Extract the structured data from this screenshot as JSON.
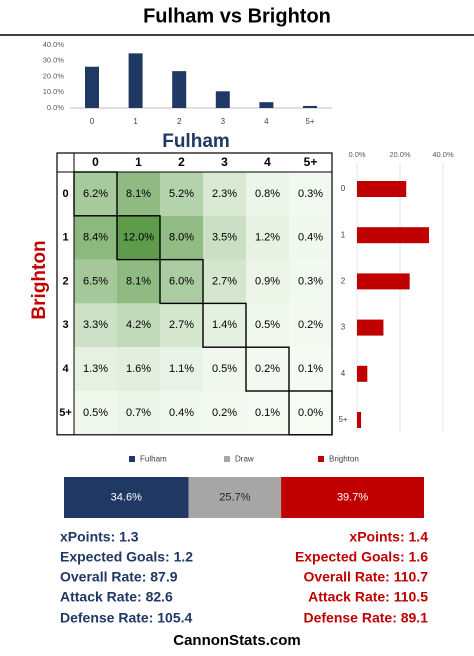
{
  "title": "Fulham vs Brighton",
  "chart_data": [
    {
      "type": "bar",
      "categories": [
        "0",
        "1",
        "2",
        "3",
        "4",
        "5+"
      ],
      "values": [
        26.2,
        34.7,
        23.4,
        10.6,
        3.7,
        1.3
      ],
      "color": "#1f3864",
      "ylim": [
        0,
        40
      ],
      "yticks": [
        {
          "value": 0,
          "label": "0.0%"
        },
        {
          "value": 10,
          "label": "10.0%"
        },
        {
          "value": 20,
          "label": "20.0%"
        },
        {
          "value": 30,
          "label": "30.0%"
        },
        {
          "value": 40,
          "label": "40.0%"
        }
      ],
      "grid": false
    },
    {
      "type": "heatmap",
      "x_label": "Fulham",
      "y_label": "Brighton",
      "x_categories": [
        "0",
        "1",
        "2",
        "3",
        "4",
        "5+"
      ],
      "y_categories": [
        "0",
        "1",
        "2",
        "3",
        "4",
        "5+"
      ],
      "values": [
        [
          6.2,
          8.1,
          5.2,
          2.3,
          0.8,
          0.3
        ],
        [
          8.4,
          12.0,
          8.0,
          3.5,
          1.2,
          0.4
        ],
        [
          6.5,
          8.1,
          6.0,
          2.7,
          0.9,
          0.3
        ],
        [
          3.3,
          4.2,
          2.7,
          1.4,
          0.5,
          0.2
        ],
        [
          1.3,
          1.6,
          1.1,
          0.5,
          0.2,
          0.1
        ],
        [
          0.5,
          0.7,
          0.4,
          0.2,
          0.1,
          0.0
        ]
      ],
      "value_labels": [
        [
          "6.2%",
          "8.1%",
          "5.2%",
          "2.3%",
          "0.8%",
          "0.3%"
        ],
        [
          "8.4%",
          "12.0%",
          "8.0%",
          "3.5%",
          "1.2%",
          "0.4%"
        ],
        [
          "6.5%",
          "8.1%",
          "6.0%",
          "2.7%",
          "0.9%",
          "0.3%"
        ],
        [
          "3.3%",
          "4.2%",
          "2.7%",
          "1.4%",
          "0.5%",
          "0.2%"
        ],
        [
          "1.3%",
          "1.6%",
          "1.1%",
          "0.5%",
          "0.2%",
          "0.1%"
        ],
        [
          "0.5%",
          "0.7%",
          "0.4%",
          "0.2%",
          "0.1%",
          "0.0%"
        ]
      ],
      "color": "#5e9c4c"
    },
    {
      "type": "barh",
      "categories": [
        "0",
        "1",
        "2",
        "3",
        "4",
        "5+"
      ],
      "values": [
        22.9,
        33.5,
        24.5,
        12.3,
        4.8,
        1.9
      ],
      "color": "#c00000",
      "xlim": [
        0,
        40
      ],
      "xticks": [
        {
          "value": 0,
          "label": "0.0%"
        },
        {
          "value": 20,
          "label": "20.0%"
        },
        {
          "value": 40,
          "label": "40.0%"
        }
      ],
      "grid": true
    },
    {
      "type": "stacked_barh",
      "series": [
        {
          "name": "Fulham",
          "color": "#1f3864",
          "values": [
            34.6
          ],
          "value_labels": [
            "34.6%"
          ]
        },
        {
          "name": "Draw",
          "color": "#a6a6a6",
          "values": [
            25.7
          ],
          "value_labels": [
            "25.7%"
          ]
        },
        {
          "name": "Brighton",
          "color": "#c00000",
          "values": [
            39.7
          ],
          "value_labels": [
            "39.7%"
          ]
        }
      ]
    }
  ],
  "stats": {
    "home": [
      "xPoints: 1.3",
      "Expected Goals: 1.2",
      "Overall Rate: 87.9",
      "Attack Rate: 82.6",
      "Defense Rate: 105.4"
    ],
    "away": [
      "xPoints: 1.4",
      "Expected Goals: 1.6",
      "Overall Rate: 110.7",
      "Attack Rate: 110.5",
      "Defense Rate: 89.1"
    ]
  },
  "footer": "CannonStats.com"
}
